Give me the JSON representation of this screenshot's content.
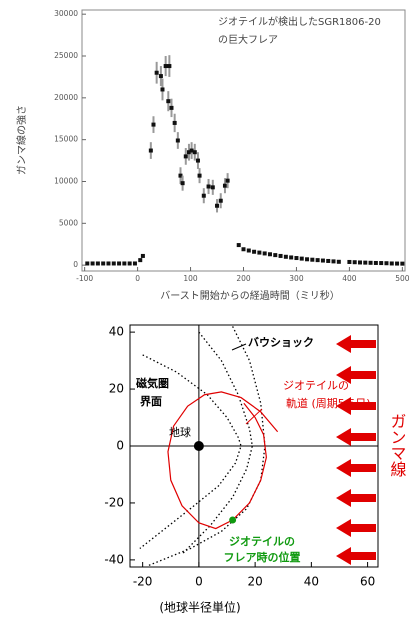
{
  "chart_data": [
    {
      "type": "scatter",
      "annotation": [
        "ジオテイルが検出したSGR1806-20",
        "の巨大フレア"
      ],
      "x_label": "バースト開始からの経過時間（ミリ秒）",
      "y_label": "ガンマ線の強さ",
      "color": "#111111",
      "x": [
        -95,
        -85,
        -75,
        -65,
        -55,
        -45,
        -35,
        -25,
        -15,
        -5,
        5,
        10,
        25,
        30,
        36,
        44,
        47,
        53,
        58,
        60,
        64,
        70,
        76,
        81,
        85,
        91,
        97,
        102,
        108,
        114,
        117,
        125,
        134,
        142,
        150,
        157,
        165,
        170,
        191,
        200,
        210,
        220,
        230,
        240,
        250,
        260,
        270,
        280,
        290,
        300,
        310,
        320,
        330,
        340,
        350,
        360,
        370,
        380,
        400,
        410,
        420,
        430,
        440,
        450,
        460,
        470,
        480,
        490,
        500
      ],
      "values": [
        200,
        200,
        200,
        200,
        200,
        200,
        200,
        200,
        200,
        200,
        600,
        1100,
        13700,
        16800,
        23000,
        22600,
        21000,
        23800,
        19600,
        23800,
        18800,
        17000,
        14900,
        10700,
        9800,
        13000,
        13500,
        13700,
        13500,
        12500,
        10700,
        8300,
        9400,
        9300,
        7100,
        7700,
        9500,
        10100,
        2400,
        1900,
        1750,
        1600,
        1500,
        1400,
        1300,
        1200,
        1100,
        1000,
        920,
        850,
        780,
        700,
        650,
        600,
        550,
        500,
        450,
        400,
        380,
        350,
        320,
        300,
        280,
        260,
        250,
        230,
        200,
        190,
        180
      ],
      "errors": [
        null,
        null,
        null,
        null,
        null,
        null,
        null,
        null,
        null,
        null,
        null,
        null,
        1000,
        1000,
        1300,
        1200,
        1300,
        1200,
        1200,
        1300,
        1100,
        1100,
        1000,
        1000,
        900,
        1000,
        1000,
        1000,
        1000,
        1000,
        900,
        900,
        900,
        900,
        800,
        900,
        900,
        900,
        null,
        null,
        null,
        null,
        null,
        null,
        null,
        null,
        null,
        null,
        null,
        null,
        null,
        null,
        null,
        null,
        null,
        null,
        null,
        null,
        null,
        null,
        null,
        null,
        null,
        null,
        null,
        null,
        null,
        null,
        null
      ],
      "xlim": [
        -105,
        505
      ],
      "ylim": [
        -700,
        30500
      ],
      "xticks": [
        -100,
        0,
        100,
        200,
        300,
        400,
        500
      ],
      "yticks": [
        0,
        5000,
        10000,
        15000,
        20000,
        25000,
        30000
      ]
    },
    {
      "type": "orbit",
      "x_label": "(地球半径単位)",
      "side_label": "ガンマ線",
      "xlim": [
        -24.5,
        63.7
      ],
      "ylim": [
        -42.5,
        42.5
      ],
      "xticks": [
        -20,
        0,
        20,
        40,
        60
      ],
      "yticks": [
        -40,
        -20,
        0,
        20,
        40
      ],
      "curves": [
        {
          "label": [
            "磁気圏",
            "界面"
          ],
          "color": "#000000",
          "dotted": true,
          "x": [
            -20,
            -8,
            3,
            10,
            14,
            15,
            13,
            7,
            -3,
            -12,
            -21
          ],
          "y": [
            32,
            26,
            18,
            10,
            3,
            0,
            -6,
            -14,
            -22,
            -29,
            -36
          ]
        },
        {
          "label": [
            "バウショック"
          ],
          "color": "#000000",
          "dotted": true,
          "x": [
            12,
            18,
            22,
            23.5,
            22,
            17,
            8,
            -3,
            -18
          ],
          "y": [
            42,
            30,
            15,
            0,
            -12,
            -22,
            -30,
            -36,
            -42
          ]
        },
        {
          "color": "#000000",
          "dotted": true,
          "x": [
            0,
            8,
            14,
            18,
            19,
            17,
            12,
            4,
            -6
          ],
          "y": [
            40,
            30,
            18,
            6,
            0,
            -8,
            -18,
            -28,
            -38
          ]
        },
        {
          "label": [
            "ジオテイルの",
            "軌道 (周期5.5日)"
          ],
          "color": "#e00000",
          "dotted": false,
          "x": [
            28,
            22,
            15,
            8,
            2,
            -4,
            -9,
            -11,
            -10,
            -6,
            0,
            6,
            12,
            18,
            22,
            24,
            23,
            20,
            16
          ],
          "y": [
            5,
            12,
            17,
            19,
            18,
            14,
            7,
            -2,
            -12,
            -21,
            -27,
            -29,
            -26,
            -20,
            -12,
            -4,
            4,
            10,
            15
          ]
        }
      ],
      "points": [
        {
          "label": [
            "地球"
          ],
          "x": 0,
          "y": 0,
          "color": "#000000"
        },
        {
          "label": [
            "ジオテイルの",
            "フレア時の位置"
          ],
          "x": 12,
          "y": -26,
          "color": "#109a10"
        }
      ]
    }
  ]
}
